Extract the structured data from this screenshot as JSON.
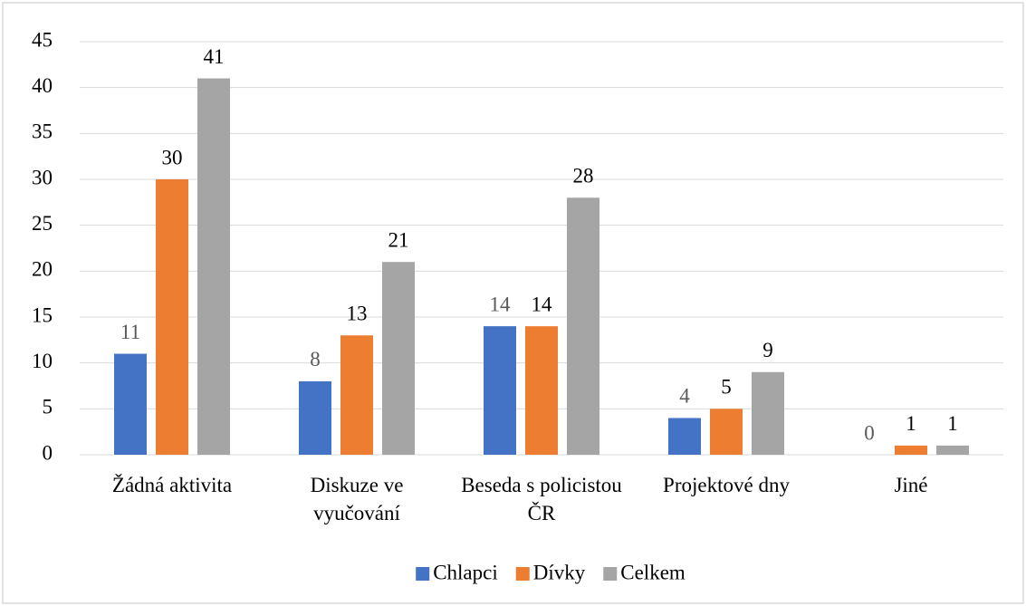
{
  "chart_data": {
    "type": "bar",
    "categories": [
      "Žádná aktivita",
      "Diskuze ve vyučování",
      "Beseda s policistou ČR",
      "Projektové dny",
      "Jiné"
    ],
    "series": [
      {
        "name": "Chlapci",
        "color": "#4472c4",
        "values": [
          11,
          8,
          14,
          4,
          0
        ]
      },
      {
        "name": "Dívky",
        "color": "#ed7d31",
        "values": [
          30,
          13,
          14,
          5,
          1
        ]
      },
      {
        "name": "Celkem",
        "color": "#a5a5a5",
        "values": [
          41,
          21,
          28,
          9,
          1
        ]
      }
    ],
    "ylim": [
      0,
      45
    ],
    "yticks": [
      0,
      5,
      10,
      15,
      20,
      25,
      30,
      35,
      40,
      45
    ],
    "grid": true,
    "legend": "bottom"
  }
}
